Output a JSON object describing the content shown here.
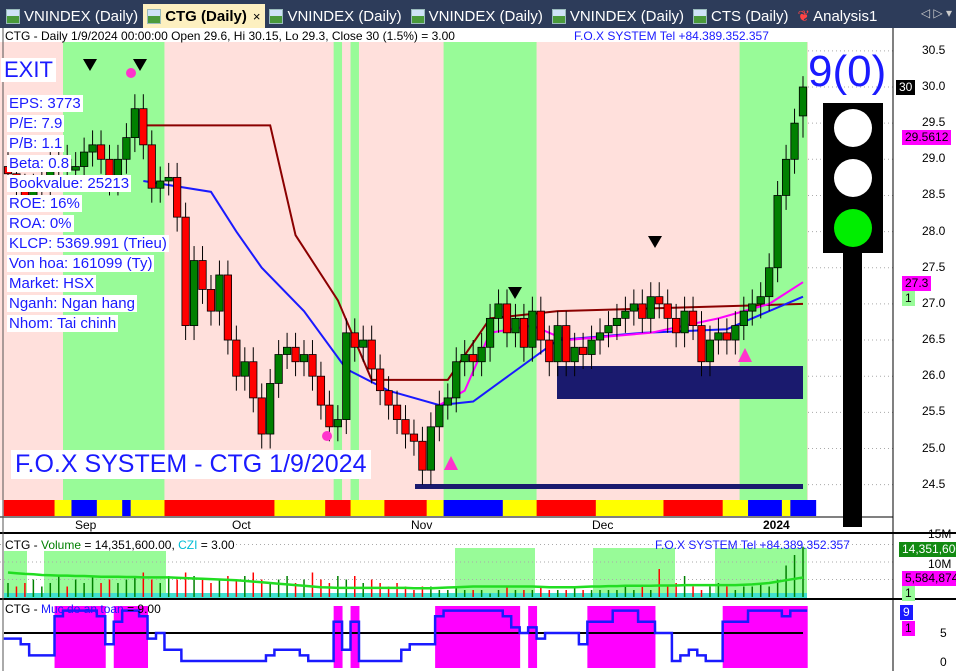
{
  "tabs": [
    {
      "label": "VNINDEX (Daily)",
      "active": false
    },
    {
      "label": "CTG (Daily)",
      "active": true
    },
    {
      "label": "VNINDEX (Daily)",
      "active": false
    },
    {
      "label": "VNINDEX (Daily)",
      "active": false
    },
    {
      "label": "VNINDEX (Daily)",
      "active": false
    },
    {
      "label": "CTS (Daily)",
      "active": false
    },
    {
      "label": "Analysis1",
      "active": false
    }
  ],
  "tab_close": "×",
  "tab_nav": "◁ ▷ ▾",
  "main": {
    "header": "CTG - Daily 1/9/2024 00:00:00 Open 29.6, Hi 30.15, Lo 29.3, Close 30 (1.5%)  = 3.00",
    "contact": "F.O.X SYSTEM Tel +84.389.352.357",
    "signal": "EXIT",
    "score": "9(0)",
    "watermark": "F.O.X SYSTEM - CTG 1/9/2024",
    "info": [
      "EPS: 3773",
      "P/E: 7.9",
      "P/B: 1.1",
      "Beta: 0.8",
      "Bookvalue: 25213",
      "ROE: 16%",
      "ROA: 0%",
      "KLCP: 5369.991 (Trieu)",
      "Von hoa: 161099 (Ty)",
      "Market: HSX",
      "Nganh: Ngan hang",
      "Nhom: Tai chinh"
    ],
    "traffic_light": {
      "red": "off",
      "yellow": "off",
      "green": "on"
    },
    "price_ticks": [
      "30.5",
      "30.0",
      "29.5",
      "29.0",
      "28.5",
      "28.0",
      "27.5",
      "27.0",
      "26.5",
      "26.0",
      "25.5",
      "25.0",
      "24.5"
    ],
    "tags": {
      "last": "30",
      "ma_fast": "29.5612",
      "ma_slow": "27.3",
      "state": "1"
    },
    "months": [
      "Sep",
      "Oct",
      "Nov",
      "Dec",
      "2024"
    ],
    "colors": {
      "up": "#008000",
      "down": "#ff0000",
      "zone_bull": "#98fb98",
      "zone_bear": "#ffe0dc",
      "support_box": "#1a1a6e"
    },
    "chart_data": {
      "type": "candlestick",
      "close": [
        28.8,
        28.6,
        28.5,
        28.6,
        28.7,
        28.9,
        29.0,
        28.85,
        28.9,
        29.1,
        29.2,
        29.0,
        28.7,
        29.0,
        29.3,
        29.7,
        29.2,
        28.6,
        28.7,
        28.75,
        28.2,
        26.7,
        27.6,
        27.2,
        26.9,
        27.4,
        26.5,
        26.0,
        26.2,
        25.7,
        25.2,
        25.9,
        26.3,
        26.4,
        26.2,
        26.3,
        26.0,
        25.6,
        25.3,
        25.4,
        26.6,
        26.4,
        26.5,
        26.1,
        25.8,
        25.6,
        25.4,
        25.2,
        25.1,
        24.7,
        25.3,
        25.6,
        25.7,
        26.2,
        26.3,
        26.2,
        26.4,
        26.8,
        27.0,
        26.6,
        26.8,
        26.4,
        26.9,
        26.5,
        26.2,
        26.7,
        26.2,
        26.4,
        26.3,
        26.5,
        26.6,
        26.7,
        26.8,
        26.9,
        27.0,
        26.8,
        27.1,
        27.0,
        26.8,
        26.6,
        26.9,
        26.7,
        26.2,
        26.5,
        26.6,
        26.5,
        26.7,
        26.9,
        27.0,
        27.1,
        27.5,
        28.5,
        29.0,
        29.5,
        30.0
      ],
      "last_bar": {
        "open": 29.6,
        "high": 30.15,
        "low": 29.3,
        "close": 30
      },
      "ylim": [
        24.3,
        30.7
      ],
      "resistance": [
        [
          16,
          29.47
        ],
        [
          31,
          29.47
        ],
        [
          34,
          27.95
        ],
        [
          39,
          27.05
        ],
        [
          43,
          25.95
        ],
        [
          52,
          25.95
        ],
        [
          57,
          26.8
        ],
        [
          65,
          26.9
        ],
        [
          94,
          27.0
        ]
      ],
      "ma_blue": [
        [
          16,
          28.7
        ],
        [
          24,
          28.55
        ],
        [
          27,
          28.0
        ],
        [
          30,
          27.5
        ],
        [
          35,
          26.9
        ],
        [
          40,
          26.1
        ],
        [
          45,
          25.8
        ],
        [
          51,
          25.6
        ],
        [
          55,
          25.65
        ],
        [
          65,
          26.5
        ],
        [
          75,
          26.6
        ],
        [
          85,
          26.65
        ],
        [
          94,
          27.1
        ]
      ],
      "ma_magenta": [
        [
          51,
          25.6
        ],
        [
          54,
          25.8
        ],
        [
          57,
          26.6
        ],
        [
          62,
          26.7
        ],
        [
          66,
          26.5
        ],
        [
          76,
          26.6
        ],
        [
          84,
          26.8
        ],
        [
          90,
          27.0
        ],
        [
          94,
          27.3
        ]
      ],
      "bull_zones": [
        [
          7,
          18
        ],
        [
          39,
          39
        ],
        [
          41,
          41
        ],
        [
          52,
          62
        ],
        [
          87,
          94
        ]
      ],
      "strip": [
        "red",
        "red",
        "red",
        "red",
        "red",
        "red",
        "yellow",
        "yellow",
        "blue",
        "blue",
        "blue",
        "yellow",
        "yellow",
        "yellow",
        "blue",
        "yellow",
        "yellow",
        "yellow",
        "yellow",
        "red",
        "red",
        "red",
        "red",
        "red",
        "red",
        "red",
        "red",
        "red",
        "red",
        "red",
        "red",
        "red",
        "yellow",
        "yellow",
        "yellow",
        "yellow",
        "yellow",
        "yellow",
        "red",
        "red",
        "red",
        "yellow",
        "yellow",
        "yellow",
        "yellow",
        "red",
        "red",
        "red",
        "red",
        "red",
        "yellow",
        "yellow",
        "blue",
        "blue",
        "blue",
        "blue",
        "blue",
        "blue",
        "blue",
        "yellow",
        "yellow",
        "yellow",
        "yellow",
        "red",
        "red",
        "red",
        "red",
        "red",
        "red",
        "red",
        "yellow",
        "yellow",
        "yellow",
        "yellow",
        "yellow",
        "yellow",
        "yellow",
        "yellow",
        "red",
        "red",
        "red",
        "red",
        "red",
        "red",
        "red",
        "yellow",
        "yellow",
        "yellow",
        "blue",
        "blue",
        "blue",
        "blue",
        "yellow",
        "blue",
        "blue",
        "blue"
      ]
    }
  },
  "volume": {
    "title_prefix": "CTG - ",
    "title_name": "Volume",
    "title_value": " = 14,351,600.00, ",
    "title_czi": "CZI",
    "title_czi_value": " = 3.00",
    "contact": "F.O.X SYSTEM Tel +84.389.352.357",
    "ticks": [
      "15M",
      "10M"
    ],
    "tags": {
      "last": "14,351,600",
      "ma": "5,584,874",
      "state": "1"
    },
    "chart_data": {
      "type": "bar",
      "unit": "M",
      "values": [
        4,
        3,
        4,
        5,
        3,
        4,
        6,
        3,
        5,
        4,
        6,
        4,
        5,
        4,
        5,
        6,
        7,
        5,
        4,
        6,
        5,
        7,
        6,
        5,
        4,
        5,
        6,
        5,
        6,
        7,
        5,
        4,
        5,
        6,
        4,
        5,
        7,
        5,
        4,
        6,
        5,
        6,
        4,
        5,
        4,
        3,
        4,
        3,
        2,
        3,
        3,
        2,
        2,
        3,
        2,
        2,
        2,
        1,
        2,
        3,
        2,
        2,
        2,
        3,
        2,
        2,
        2,
        3,
        2,
        2,
        2,
        2,
        2,
        3,
        2,
        3,
        2,
        8,
        3,
        4,
        6,
        3,
        2,
        3,
        4,
        3,
        2,
        3,
        3,
        4,
        3,
        5,
        9,
        12,
        14.35
      ],
      "ma": [
        7,
        6.8,
        6.6,
        6.5,
        6.3,
        6.2,
        6.1,
        6.1,
        6.0,
        6.0,
        5.9,
        5.8,
        5.8,
        5.8,
        5.7,
        5.7,
        5.6,
        5.6,
        5.6,
        5.6,
        5.5,
        5.4,
        5.3,
        5.2,
        5.1,
        5.0,
        4.9,
        4.8,
        4.6,
        4.4,
        4.2,
        4.0,
        3.8,
        3.6,
        3.4,
        3.2,
        3.0,
        2.8,
        2.7,
        2.6,
        2.6,
        2.6,
        2.6,
        2.6,
        2.6,
        2.6,
        2.6,
        2.6,
        2.5,
        2.5,
        2.5,
        2.6,
        2.7,
        2.8,
        2.9,
        3.0,
        3.0,
        3.0,
        3.0,
        3.0,
        3.0,
        3.0,
        3.0,
        2.9,
        2.8,
        2.8,
        2.8,
        2.8,
        2.9,
        3.0,
        3.0,
        3.1,
        3.1,
        3.2,
        3.2,
        3.2,
        3.2,
        3.3,
        3.3,
        3.3,
        3.4,
        3.4,
        3.4,
        3.4,
        3.4,
        3.4,
        3.4,
        3.5,
        3.6,
        3.8,
        4.0,
        4.4,
        4.8,
        5.2,
        5.58
      ],
      "ylim": [
        0,
        16
      ]
    }
  },
  "safety": {
    "title_prefix": "CTG - ",
    "title_name": "Muc do an toan",
    "title_value": " = 9.00",
    "ticks": [
      "5",
      "0"
    ],
    "tags": {
      "value": "9",
      "state": "1"
    },
    "chart_data": {
      "type": "line",
      "threshold": 5,
      "ylim": [
        0,
        10
      ],
      "values": [
        4,
        4,
        3,
        1,
        1,
        1,
        8,
        9,
        9,
        9,
        9,
        8,
        3,
        7,
        9,
        9,
        8,
        4,
        5,
        2,
        2,
        0,
        0,
        0,
        0,
        0,
        0,
        0,
        0,
        0,
        0,
        1,
        2,
        2,
        2,
        1,
        0,
        0,
        0,
        7,
        2,
        7,
        0,
        0,
        0,
        0,
        0,
        2,
        3,
        3,
        3,
        8,
        9,
        9,
        9,
        9,
        9,
        9,
        9,
        8,
        6,
        5,
        6,
        4,
        5,
        5,
        5,
        5,
        3,
        7,
        7,
        7,
        9,
        9,
        9,
        7,
        7,
        5,
        5,
        0,
        1,
        2,
        1,
        0,
        0,
        7,
        7,
        7,
        9,
        9,
        9,
        9,
        8,
        9,
        9
      ]
    }
  }
}
